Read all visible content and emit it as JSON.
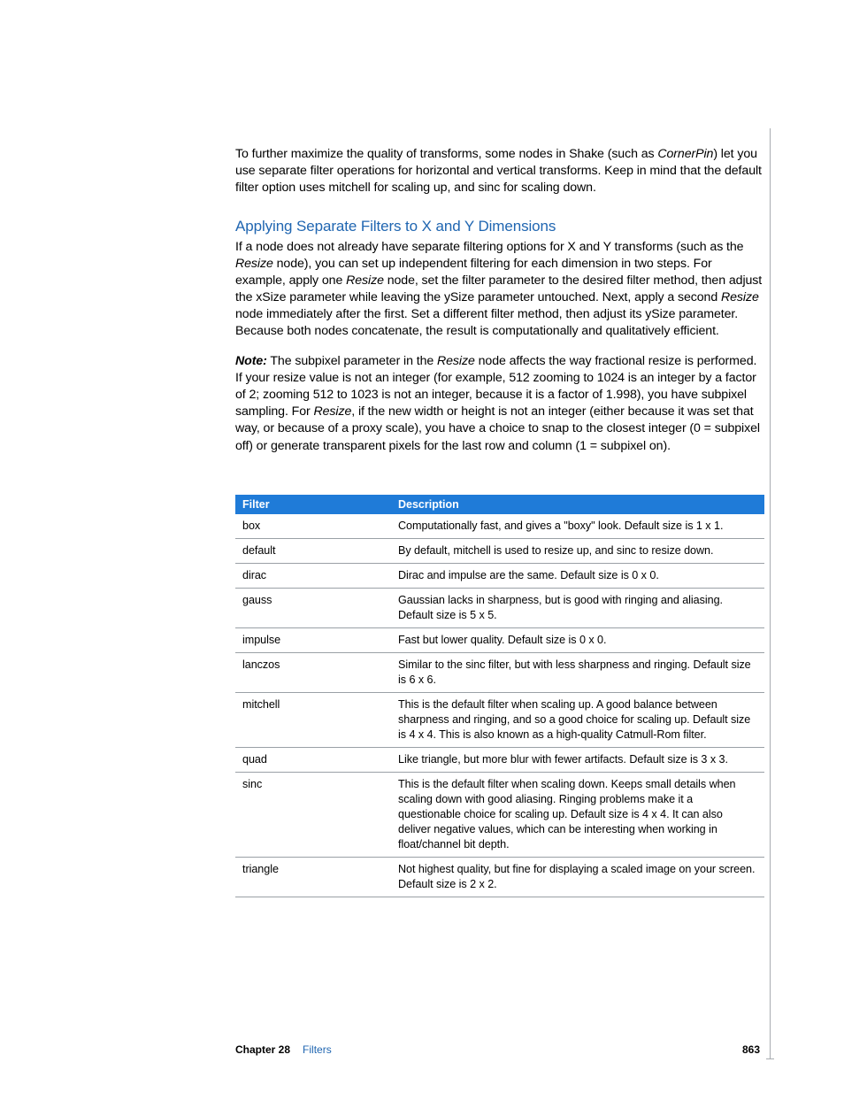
{
  "colors": {
    "heading_blue": "#2066b1",
    "table_header_bg": "#1f7bd8",
    "table_header_text": "#ffffff",
    "row_border": "#9aa0a6",
    "footer_blue": "#2066b1",
    "body_text": "#000000"
  },
  "intro": {
    "pre": "To further maximize the quality of transforms, some nodes in Shake (such as ",
    "ital": "CornerPin",
    "post": ") let you use separate filter operations for horizontal and vertical transforms. Keep in mind that the default filter option uses mitchell for scaling up, and sinc for scaling down."
  },
  "heading": "Applying Separate Filters to X and Y Dimensions",
  "para1": {
    "seg0": "If a node does not already have separate filtering options for X and Y transforms (such as the ",
    "ital1": "Resize",
    "seg1": " node), you can set up independent filtering for each dimension in two steps. For example, apply one ",
    "ital2": "Resize",
    "seg2": " node, set the filter parameter to the desired filter method, then adjust the xSize parameter while leaving the ySize parameter untouched. Next, apply a second ",
    "ital3": "Resize",
    "seg3": " node immediately after the first. Set a different filter method, then adjust its ySize parameter. Because both nodes concatenate, the result is computationally and qualitatively efficient."
  },
  "para2": {
    "note": "Note:",
    "seg0": "  The subpixel parameter in the ",
    "ital1": "Resize",
    "seg1": " node affects the way fractional resize is performed. If your resize value is not an integer (for example, 512 zooming to 1024 is an integer by a factor of 2; zooming 512 to 1023 is not an integer, because it is a factor of 1.998), you have subpixel sampling. For ",
    "ital2": "Resize",
    "seg2": ", if the new width or height is not an integer (either because it was set that way, or because of a proxy scale), you have a choice to snap to the closest integer (0 = subpixel off) or generate transparent pixels for the last row and column (1 = subpixel on)."
  },
  "table": {
    "columns": [
      "Filter",
      "Description"
    ],
    "rows": [
      {
        "filter": "box",
        "desc": "Computationally fast, and gives a \"boxy\" look. Default size is 1 x 1."
      },
      {
        "filter": "default",
        "desc": "By default, mitchell is used to resize up, and sinc to resize down."
      },
      {
        "filter": "dirac",
        "desc": "Dirac and impulse are the same. Default size is 0 x 0."
      },
      {
        "filter": "gauss",
        "desc": "Gaussian lacks in sharpness, but is good with ringing and aliasing. Default size is 5 x 5."
      },
      {
        "filter": "impulse",
        "desc": "Fast but lower quality. Default size is 0 x 0."
      },
      {
        "filter": "lanczos",
        "desc": "Similar to the sinc filter, but with less sharpness and ringing. Default size is 6 x 6."
      },
      {
        "filter": "mitchell",
        "desc": "This is the default filter when scaling up. A good balance between sharpness and ringing, and so a good choice for scaling up. Default size is 4 x 4. This is also known as a high-quality Catmull-Rom filter."
      },
      {
        "filter": "quad",
        "desc": "Like triangle, but more blur with fewer artifacts. Default size is 3 x 3."
      },
      {
        "filter": "sinc",
        "desc": "This is the default filter when scaling down. Keeps small details when scaling down with good aliasing. Ringing problems make it a questionable choice for scaling up. Default size is 4 x 4. It can also deliver negative values, which can be interesting when working in float/channel bit depth."
      },
      {
        "filter": "triangle",
        "desc": "Not highest quality, but fine for displaying a scaled image on your screen. Default size is 2 x 2."
      }
    ]
  },
  "footer": {
    "chapter": "Chapter 28",
    "title": "Filters",
    "page": "863"
  }
}
